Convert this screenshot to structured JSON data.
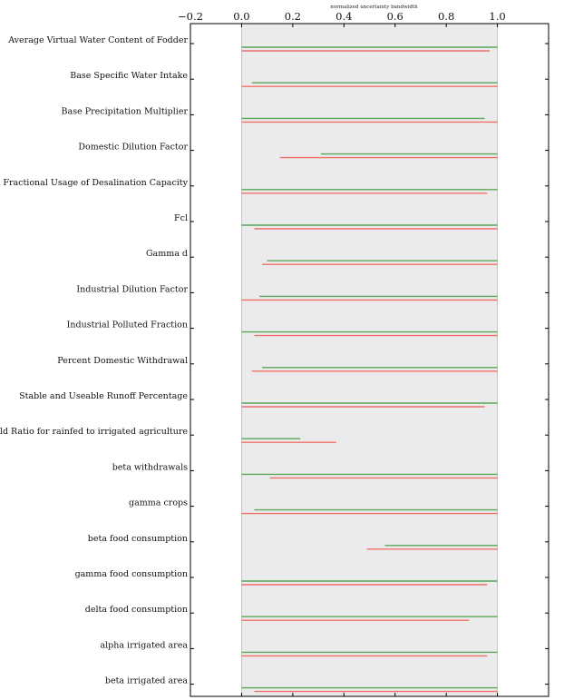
{
  "chart_data": {
    "type": "bar",
    "orientation": "horizontal-range",
    "title": "normalized uncertainty bandwidth",
    "xlim": [
      -0.2,
      1.2
    ],
    "xticks": [
      "−0.2",
      "0.0",
      "0.2",
      "0.4",
      "0.6",
      "0.8",
      "1.0"
    ],
    "xtick_values": [
      -0.2,
      0.0,
      0.2,
      0.4,
      0.6,
      0.8,
      1.0
    ],
    "shaded_region": [
      0.0,
      1.0
    ],
    "colors": {
      "green": "#5aa65a",
      "red": "#f0706a",
      "shade": "#ebebeb"
    },
    "categories": [
      "Average Virtual Water Content of Fodder",
      "Base Specific Water Intake",
      "Base Precipitation Multiplier",
      "Domestic Dilution Factor",
      "Fractional Usage of Desalination Capacity",
      "Fcl",
      "Gamma d",
      "Industrial Dilution Factor",
      "Industrial Polluted Fraction",
      "Percent Domestic Withdrawal",
      "Stable and Useable Runoff Percentage",
      "Yield Ratio for rainfed to irrigated agriculture",
      "beta withdrawals",
      "gamma crops",
      "beta food consumption",
      "gamma food consumption",
      "delta food consumption",
      "alpha irrigated area",
      "beta irrigated area"
    ],
    "series": [
      {
        "color": "green",
        "ranges": [
          [
            0.0,
            1.0
          ],
          [
            0.04,
            1.0
          ],
          [
            0.0,
            0.95
          ],
          [
            0.31,
            1.0
          ],
          [
            0.0,
            1.0
          ],
          [
            0.0,
            1.0
          ],
          [
            0.1,
            1.0
          ],
          [
            0.07,
            1.0
          ],
          [
            0.0,
            1.0
          ],
          [
            0.08,
            1.0
          ],
          [
            0.0,
            1.0
          ],
          [
            0.0,
            0.23
          ],
          [
            0.0,
            1.0
          ],
          [
            0.05,
            1.0
          ],
          [
            0.56,
            1.0
          ],
          [
            0.0,
            1.0
          ],
          [
            0.0,
            1.0
          ],
          [
            0.0,
            1.0
          ],
          [
            0.0,
            1.0
          ]
        ]
      },
      {
        "color": "red",
        "ranges": [
          [
            0.0,
            0.97
          ],
          [
            0.0,
            1.0
          ],
          [
            0.0,
            1.0
          ],
          [
            0.15,
            1.0
          ],
          [
            0.0,
            0.96
          ],
          [
            0.05,
            1.0
          ],
          [
            0.08,
            1.0
          ],
          [
            0.0,
            1.0
          ],
          [
            0.05,
            1.0
          ],
          [
            0.04,
            1.0
          ],
          [
            0.0,
            0.95
          ],
          [
            0.0,
            0.37
          ],
          [
            0.11,
            1.0
          ],
          [
            0.0,
            1.0
          ],
          [
            0.49,
            1.0
          ],
          [
            0.0,
            0.96
          ],
          [
            0.0,
            0.89
          ],
          [
            0.0,
            0.96
          ],
          [
            0.05,
            1.0
          ]
        ]
      }
    ]
  }
}
